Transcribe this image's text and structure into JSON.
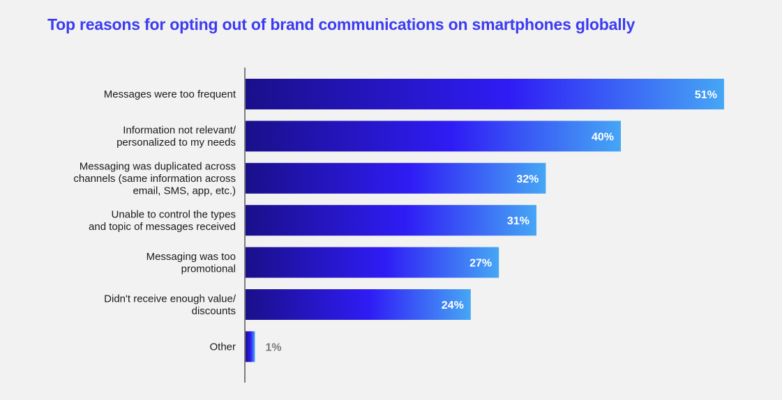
{
  "chart_data": {
    "type": "bar",
    "orientation": "horizontal",
    "title": "Top reasons for opting out of brand communications on smartphones globally",
    "categories": [
      [
        "Messages were too frequent"
      ],
      [
        "Information not relevant/",
        "personalized to my needs"
      ],
      [
        "Messaging was duplicated across",
        "channels (same information across",
        "email, SMS, app, etc.)"
      ],
      [
        "Unable to control the types",
        "and topic of messages received"
      ],
      [
        "Messaging was too",
        "promotional"
      ],
      [
        "Didn't receive enough value/",
        "discounts"
      ],
      [
        "Other"
      ]
    ],
    "values": [
      51,
      40,
      32,
      31,
      27,
      24,
      1
    ],
    "value_labels": [
      "51%",
      "40%",
      "32%",
      "31%",
      "27%",
      "24%",
      "1%"
    ],
    "value_unit": "%",
    "grid": false,
    "legend": "none",
    "colors": {
      "title": "#3b3bf2",
      "bar_start": "#1a0f8a",
      "bar_mid": "#2f1cf5",
      "bar_end": "#46a6f5",
      "label_inside": "#ffffff",
      "label_outside": "#7a7a7a",
      "axis": "#555555",
      "background": "#f2f2f2"
    }
  }
}
